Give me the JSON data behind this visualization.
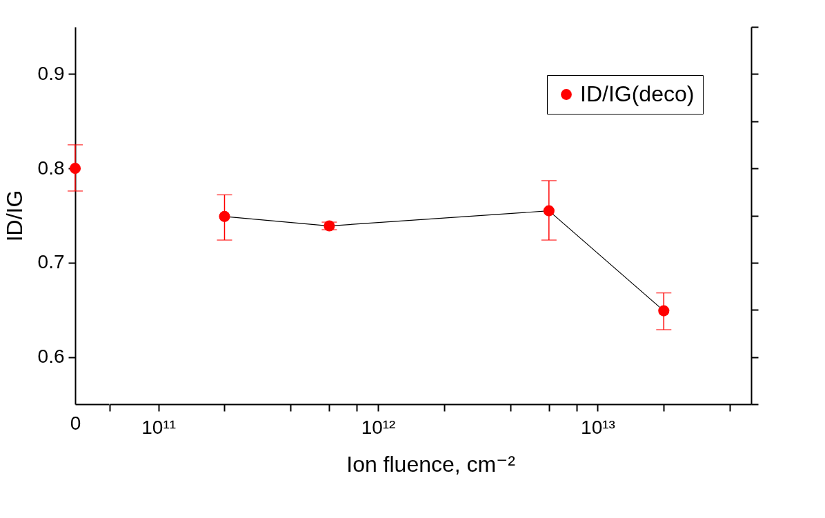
{
  "chart_data": [
    {
      "type": "line",
      "ylabel": "ID/IG",
      "categories": [
        "0"
      ],
      "ylim": [
        0.55,
        0.95
      ],
      "yticks": [
        0.6,
        0.7,
        0.8,
        0.9
      ],
      "marker": "circle",
      "series": [
        {
          "color": "#ff0000",
          "values": [
            0.8
          ],
          "errors": [
            [
              0.776,
              0.825
            ]
          ]
        }
      ]
    },
    {
      "type": "line",
      "xlabel": "Ion fluence, cm⁻²",
      "x": [
        200000000000.0,
        600000000000.0,
        6000000000000.0,
        20000000000000.0
      ],
      "log": "x",
      "xlim": [
        60000000000.0,
        50000000000000.0
      ],
      "xticks": [
        {
          "value": 60000000000.0,
          "label": null
        },
        {
          "value": 100000000000.0,
          "label": "10¹¹"
        },
        {
          "value": 200000000000.0,
          "label": null
        },
        {
          "value": 400000000000.0,
          "label": null
        },
        {
          "value": 600000000000.0,
          "label": null
        },
        {
          "value": 800000000000.0,
          "label": null
        },
        {
          "value": 1000000000000.0,
          "label": "10¹²"
        },
        {
          "value": 2000000000000.0,
          "label": null
        },
        {
          "value": 4000000000000.0,
          "label": null
        },
        {
          "value": 6000000000000.0,
          "label": null
        },
        {
          "value": 8000000000000.0,
          "label": null
        },
        {
          "value": 10000000000000.0,
          "label": "10¹³"
        },
        {
          "value": 20000000000000.0,
          "label": null
        },
        {
          "value": 40000000000000.0,
          "label": null
        }
      ],
      "ylim": [
        0.55,
        0.95
      ],
      "yticks": [
        {
          "value": 0.55,
          "label": null
        },
        {
          "value": 0.6,
          "label": null
        },
        {
          "value": 0.65,
          "label": null
        },
        {
          "value": 0.7,
          "label": null
        },
        {
          "value": 0.75,
          "label": null
        },
        {
          "value": 0.8,
          "label": null
        },
        {
          "value": 0.85,
          "label": null
        },
        {
          "value": 0.9,
          "label": null
        },
        {
          "value": 0.95,
          "label": null
        }
      ],
      "tick_labels": "x",
      "marker": "circle",
      "legend": "top right",
      "series": [
        {
          "name": "ID/IG(deco)",
          "color": "#ff0000",
          "values": [
            0.749,
            0.739,
            0.755,
            0.649
          ],
          "errors": [
            [
              0.724,
              0.772
            ],
            [
              0.735,
              0.743
            ],
            [
              0.724,
              0.787
            ],
            [
              0.629,
              0.668
            ]
          ]
        }
      ]
    }
  ]
}
